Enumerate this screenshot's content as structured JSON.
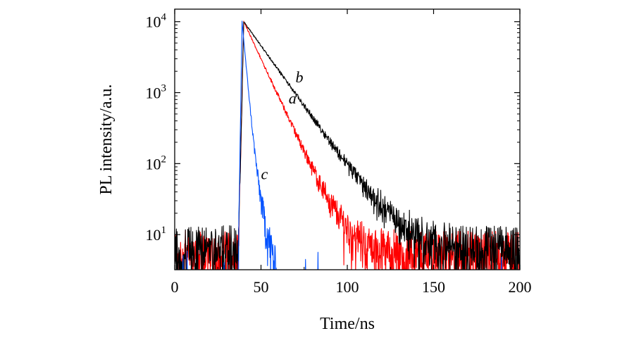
{
  "chart_data": {
    "type": "line",
    "title": "",
    "xlabel": "Time/ns",
    "ylabel": "PL intensity/a.u.",
    "xscale": "linear",
    "yscale": "log",
    "xlim": [
      0,
      200
    ],
    "ylim": [
      3.2,
      15000
    ],
    "x_ticks": [
      0,
      50,
      100,
      150,
      200
    ],
    "x_tick_labels": [
      "0",
      "50",
      "100",
      "150",
      "200"
    ],
    "y_ticks": [
      {
        "value": 10,
        "base": "10",
        "exp": "1"
      },
      {
        "value": 100,
        "base": "10",
        "exp": "2"
      },
      {
        "value": 1000,
        "base": "10",
        "exp": "3"
      },
      {
        "value": 10000,
        "base": "10",
        "exp": "4"
      }
    ],
    "grid": false,
    "series": [
      {
        "name": "a",
        "label": "a",
        "color": "#ff0000",
        "rise_start": 37,
        "peak_time": 40,
        "peak_value": 10000,
        "noise_floor": 6,
        "decay_components": [
          {
            "amplitude": 10000,
            "tau_ns": 8.3
          }
        ],
        "label_position_data": [
          66,
          700
        ]
      },
      {
        "name": "b",
        "label": "b",
        "color": "#000000",
        "rise_start": 37,
        "peak_time": 40,
        "peak_value": 10000,
        "noise_floor": 7,
        "decay_components": [
          {
            "amplitude": 10000,
            "tau_ns": 12.8
          }
        ],
        "label_position_data": [
          70,
          1400
        ]
      },
      {
        "name": "c",
        "label": "c",
        "color": "#0050ff",
        "rise_start": 37,
        "peak_time": 39,
        "peak_value": 10000,
        "noise_floor": 0,
        "decay_components": [
          {
            "amplitude": 10000,
            "tau_ns": 1.6
          },
          {
            "amplitude": 250,
            "tau_ns": 4.5
          }
        ],
        "label_position_data": [
          50,
          60
        ]
      }
    ]
  }
}
